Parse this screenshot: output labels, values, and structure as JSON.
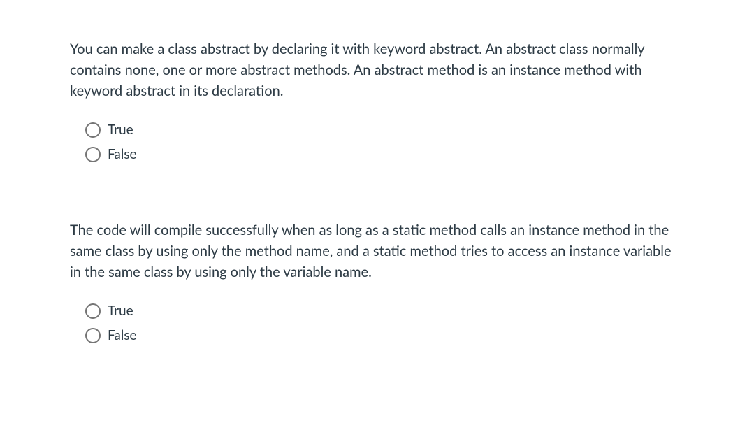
{
  "background_color": "#ffffff",
  "text_color": "#2d3b45",
  "radio_border_color": "#757575",
  "font_family": "Lato, Helvetica Neue, Helvetica, Arial, sans-serif",
  "question_fontsize": 20,
  "option_fontsize": 19,
  "questions": [
    {
      "text": "You can make a class abstract by declaring it with keyword abstract. An abstract class normally contains none, one or more abstract methods. An abstract method is an instance method with keyword abstract in its declaration.",
      "options": [
        {
          "label": "True",
          "selected": false
        },
        {
          "label": "False",
          "selected": false
        }
      ]
    },
    {
      "text": "The code will compile successfully when as long as a static method calls an instance method in the same class by using only the method name, and a static method tries to access an instance variable in the same class by using only the variable name.",
      "options": [
        {
          "label": "True",
          "selected": false
        },
        {
          "label": "False",
          "selected": false
        }
      ]
    }
  ]
}
